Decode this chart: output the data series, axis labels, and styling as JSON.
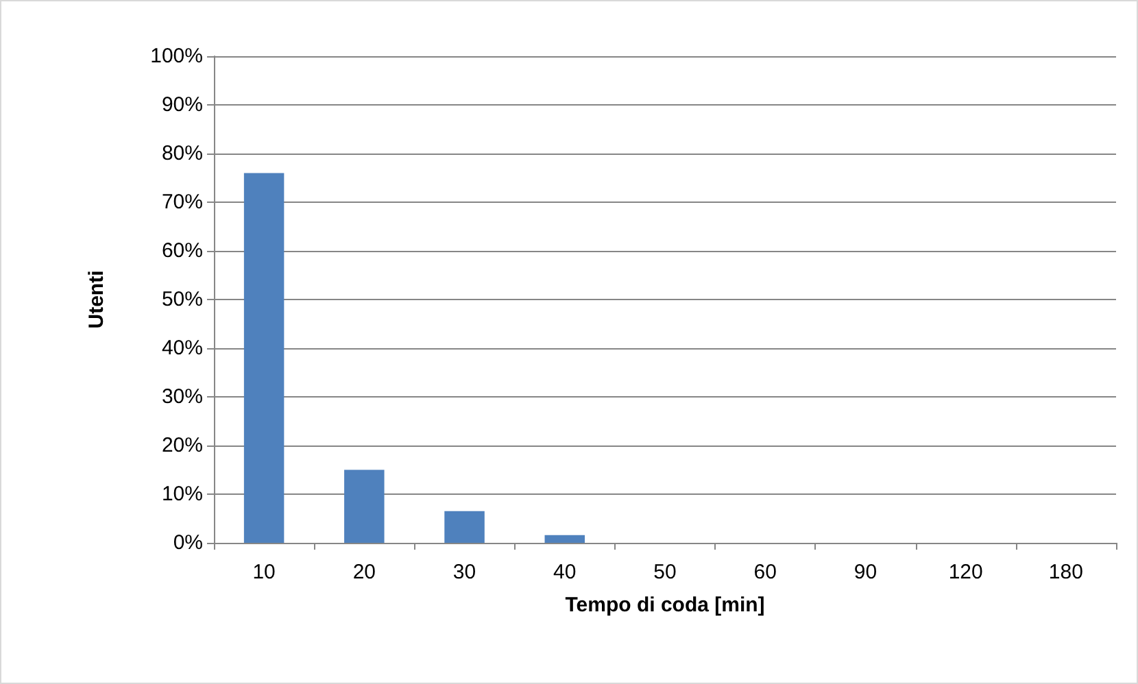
{
  "chart_data": {
    "type": "bar",
    "xlabel": "Tempo di coda [min]",
    "ylabel": "Utenti",
    "categories": [
      "10",
      "20",
      "30",
      "40",
      "50",
      "60",
      "90",
      "120",
      "180"
    ],
    "values": [
      76,
      15,
      6.5,
      1.6,
      0,
      0,
      0,
      0,
      0
    ],
    "color": "#4f81bd",
    "ylim": [
      0,
      100
    ],
    "yticks": [
      {
        "value": 0,
        "label": "0%"
      },
      {
        "value": 10,
        "label": "10%"
      },
      {
        "value": 20,
        "label": "20%"
      },
      {
        "value": 30,
        "label": "30%"
      },
      {
        "value": 40,
        "label": "40%"
      },
      {
        "value": 50,
        "label": "50%"
      },
      {
        "value": 60,
        "label": "60%"
      },
      {
        "value": 70,
        "label": "70%"
      },
      {
        "value": 80,
        "label": "80%"
      },
      {
        "value": 90,
        "label": "90%"
      },
      {
        "value": 100,
        "label": "100%"
      }
    ],
    "grid": "y"
  }
}
